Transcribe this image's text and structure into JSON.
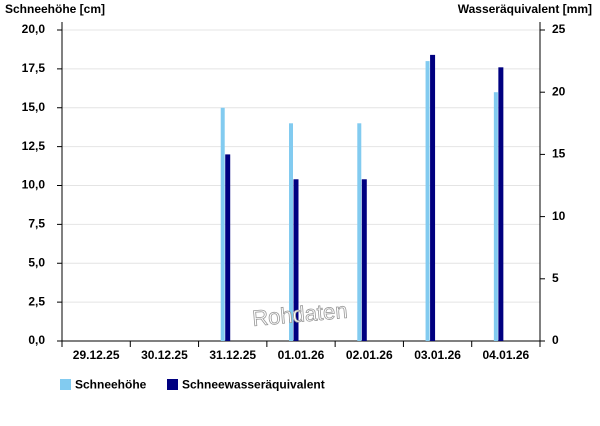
{
  "chart_data": {
    "type": "bar",
    "y_label": "Schneehöhe [cm]",
    "y2_label": "Wasseräquivalent [mm]",
    "watermark": "Rohdaten",
    "categories": [
      "29.12.25",
      "30.12.25",
      "31.12.25",
      "01.01.26",
      "02.01.26",
      "03.01.26",
      "04.01.26"
    ],
    "series": [
      {
        "name": "Schneehöhe",
        "color": "#82cbf0",
        "values": [
          null,
          null,
          15,
          14,
          14,
          18,
          16
        ]
      },
      {
        "name": "Schneewasseräquivalent",
        "color": "#000080",
        "axis": "y2",
        "values": [
          null,
          null,
          15,
          13,
          13,
          23,
          22
        ]
      }
    ],
    "ylim": [
      0,
      20
    ],
    "yticks": [
      {
        "value": 0,
        "label": "0,0"
      },
      {
        "value": 2.5,
        "label": "2,5"
      },
      {
        "value": 5,
        "label": "5,0"
      },
      {
        "value": 7.5,
        "label": "7,5"
      },
      {
        "value": 10,
        "label": "10,0"
      },
      {
        "value": 12.5,
        "label": "12,5"
      },
      {
        "value": 15,
        "label": "15,0"
      },
      {
        "value": 17.5,
        "label": "17,5"
      },
      {
        "value": 20,
        "label": "20,0"
      }
    ],
    "y2lim": [
      0,
      25
    ],
    "y2ticks": [
      0,
      5,
      10,
      15,
      20,
      25
    ],
    "grid": true
  }
}
